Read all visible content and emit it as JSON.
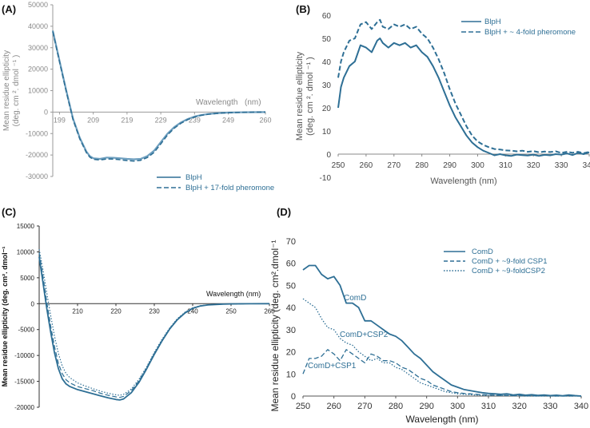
{
  "colors": {
    "main": "#2e6f95",
    "a_line": "#6e9fbf",
    "grey": "#8a8a8a"
  },
  "chart_data": [
    {
      "id": "A",
      "panel_label": "(A)",
      "type": "line",
      "xlabel": "Wavelength",
      "xlabel_unit": "(nm)",
      "ylabel_line1": "Mean residue ellipticity",
      "ylabel_line2": "(deg. cm ². dmol ⁻¹ )",
      "xlim": [
        197,
        260
      ],
      "ylim": [
        -30000,
        50000
      ],
      "xticks": [
        "199",
        "209",
        "219",
        "229",
        "239",
        "249",
        "260"
      ],
      "xtick_values": [
        199,
        209,
        219,
        229,
        239,
        249,
        260
      ],
      "yticks": [
        "50000",
        "40000",
        "30000",
        "20000",
        "10000",
        "0",
        "-10000",
        "-20000",
        "-30000"
      ],
      "ytick_values": [
        50000,
        40000,
        30000,
        20000,
        10000,
        0,
        -10000,
        -20000,
        -30000
      ],
      "legend": [
        "BlpH",
        "BlpH + 17-fold pheromone"
      ],
      "series": [
        {
          "name": "BlpH",
          "style": "solid",
          "x": [
            197,
            199,
            201,
            203,
            205,
            207,
            208,
            209,
            211,
            213,
            215,
            217,
            219,
            221,
            223,
            225,
            227,
            229,
            231,
            233,
            235,
            237,
            239,
            241,
            243,
            245,
            247,
            249,
            252,
            256,
            260
          ],
          "y": [
            38000,
            24000,
            10000,
            -3000,
            -12000,
            -18500,
            -20500,
            -21500,
            -21800,
            -21200,
            -21300,
            -21500,
            -21800,
            -22000,
            -21800,
            -20500,
            -18000,
            -14000,
            -10000,
            -7000,
            -4800,
            -3200,
            -2100,
            -1400,
            -900,
            -600,
            -400,
            -250,
            -120,
            -40,
            0
          ]
        },
        {
          "name": "BlpH + 17-fold pheromone",
          "style": "dashed",
          "x": [
            197,
            199,
            201,
            203,
            205,
            207,
            208,
            209,
            211,
            213,
            215,
            217,
            219,
            221,
            223,
            225,
            227,
            229,
            231,
            233,
            235,
            237,
            239,
            241,
            243,
            245,
            247,
            249,
            252,
            256,
            260
          ],
          "y": [
            37500,
            23500,
            9500,
            -3500,
            -12500,
            -19000,
            -21000,
            -22000,
            -22300,
            -21800,
            -21900,
            -22200,
            -22600,
            -22800,
            -22500,
            -21200,
            -18800,
            -14800,
            -10600,
            -7500,
            -5200,
            -3500,
            -2300,
            -1500,
            -1000,
            -700,
            -450,
            -300,
            -150,
            -50,
            0
          ]
        }
      ]
    },
    {
      "id": "B",
      "panel_label": "(B)",
      "type": "line",
      "xlabel": "Wavelength (nm)",
      "ylabel_line1": "Mean residue ellipticity",
      "ylabel_line2": "(deg. cm ². dmol ⁻¹ )",
      "xlim": [
        250,
        340
      ],
      "ylim": [
        -10,
        60
      ],
      "xticks": [
        "250",
        "260",
        "270",
        "280",
        "290",
        "300",
        "310",
        "320",
        "330",
        "340"
      ],
      "xtick_values": [
        250,
        260,
        270,
        280,
        290,
        300,
        310,
        320,
        330,
        340
      ],
      "yticks": [
        "60",
        "50",
        "40",
        "30",
        "20",
        "10",
        "0",
        "-10"
      ],
      "ytick_values": [
        60,
        50,
        40,
        30,
        20,
        10,
        0,
        -10
      ],
      "legend": [
        "BlpH",
        "BlpH + ~ 4-fold pheromone"
      ],
      "series": [
        {
          "name": "BlpH",
          "style": "solid",
          "x": [
            250,
            251,
            252,
            254,
            256,
            258,
            260,
            262,
            264,
            265,
            266,
            268,
            270,
            272,
            274,
            276,
            278,
            280,
            282,
            284,
            286,
            288,
            290,
            292,
            294,
            296,
            298,
            300,
            302,
            304,
            306,
            308,
            310,
            312,
            314,
            316,
            318,
            320,
            322,
            324,
            326,
            328,
            330,
            332,
            334,
            336,
            338,
            340
          ],
          "y": [
            20,
            29,
            33,
            38,
            40,
            47,
            46,
            44,
            49,
            50,
            48,
            46,
            48,
            47,
            48,
            46,
            47,
            44,
            42,
            38,
            33,
            27,
            21,
            16,
            12,
            8,
            5,
            3,
            1.5,
            0.5,
            -0.5,
            0,
            -0.5,
            -0.8,
            -0.2,
            -0.4,
            -0.6,
            -0.2,
            -0.8,
            -0.3,
            -0.5,
            0,
            -0.2,
            0.3,
            -0.4,
            0.5,
            0,
            0.8
          ]
        },
        {
          "name": "BlpH + ~ 4-fold pheromone",
          "style": "dashed",
          "x": [
            250,
            251,
            252,
            254,
            256,
            258,
            260,
            262,
            264,
            265,
            266,
            268,
            270,
            272,
            274,
            276,
            278,
            280,
            282,
            284,
            286,
            288,
            290,
            292,
            294,
            296,
            298,
            300,
            302,
            304,
            306,
            308,
            310,
            312,
            314,
            316,
            318,
            320,
            322,
            324,
            326,
            328,
            330,
            332,
            334,
            336,
            338,
            340
          ],
          "y": [
            33,
            40,
            44,
            49,
            50,
            56,
            57,
            54,
            57,
            58,
            55,
            54,
            56,
            55,
            56,
            54,
            55,
            52,
            50,
            46,
            41,
            35,
            28,
            22,
            17,
            12,
            8,
            5.5,
            4,
            3,
            2.2,
            2,
            1.6,
            1.5,
            1.2,
            1.5,
            1,
            1.3,
            0.8,
            1.1,
            0.9,
            1.2,
            0.5,
            1,
            0.6,
            1,
            0.4,
            1
          ]
        }
      ]
    },
    {
      "id": "C",
      "panel_label": "(C)",
      "type": "line",
      "xlabel": "Wavelength (nm)",
      "ylabel": "Mean residue ellipticity (deg. cm². dmol⁻¹",
      "xlim": [
        200,
        260
      ],
      "ylim": [
        -20000,
        15000
      ],
      "xticks": [
        "210",
        "220",
        "230",
        "240",
        "250",
        "260"
      ],
      "xtick_values": [
        210,
        220,
        230,
        240,
        250,
        260
      ],
      "yticks": [
        "15000",
        "10000",
        "5000",
        "0",
        "-5000",
        "-10000",
        "-15000",
        "-20000"
      ],
      "ytick_values": [
        15000,
        10000,
        5000,
        0,
        -5000,
        -10000,
        -15000,
        -20000
      ],
      "series": [
        {
          "name": "solid",
          "style": "solid",
          "x": [
            200,
            201,
            202,
            203,
            204,
            205,
            206,
            207,
            208,
            210,
            212,
            214,
            216,
            218,
            220,
            221,
            222,
            224,
            226,
            228,
            230,
            232,
            234,
            236,
            238,
            240,
            242,
            244,
            246,
            248,
            250,
            255,
            260
          ],
          "y": [
            9000,
            4000,
            -1000,
            -5500,
            -9500,
            -12500,
            -14500,
            -15500,
            -16000,
            -16600,
            -17000,
            -17400,
            -17800,
            -18200,
            -18500,
            -18600,
            -18400,
            -17200,
            -15200,
            -12600,
            -9800,
            -7200,
            -4900,
            -3100,
            -1800,
            -900,
            -450,
            -250,
            -150,
            -90,
            -50,
            -15,
            0
          ]
        },
        {
          "name": "dashed",
          "style": "dashed",
          "x": [
            200,
            201,
            202,
            203,
            204,
            205,
            206,
            207,
            208,
            210,
            212,
            214,
            216,
            218,
            220,
            221,
            222,
            224,
            226,
            228,
            230,
            232,
            234,
            236,
            238,
            240,
            242,
            244,
            246,
            248,
            250,
            255,
            260
          ],
          "y": [
            9800,
            5200,
            200,
            -4300,
            -8300,
            -11500,
            -13500,
            -14700,
            -15300,
            -16000,
            -16400,
            -16800,
            -17300,
            -17700,
            -18000,
            -18100,
            -17900,
            -16800,
            -14900,
            -12400,
            -9600,
            -7100,
            -4800,
            -3000,
            -1700,
            -850,
            -420,
            -230,
            -140,
            -85,
            -45,
            -12,
            0
          ]
        },
        {
          "name": "dotted",
          "style": "dotted",
          "x": [
            200,
            201,
            202,
            203,
            204,
            205,
            206,
            207,
            208,
            210,
            212,
            214,
            216,
            218,
            220,
            221,
            222,
            224,
            226,
            228,
            230,
            232,
            234,
            236,
            238,
            240,
            242,
            244,
            246,
            248,
            250,
            255,
            260
          ],
          "y": [
            10500,
            6500,
            2000,
            -2300,
            -6300,
            -9600,
            -12000,
            -13500,
            -14300,
            -15300,
            -15900,
            -16400,
            -16900,
            -17300,
            -17600,
            -17700,
            -17500,
            -16500,
            -14600,
            -12200,
            -9400,
            -6900,
            -4700,
            -2900,
            -1650,
            -800,
            -400,
            -220,
            -130,
            -80,
            -40,
            -10,
            0
          ]
        }
      ]
    },
    {
      "id": "D",
      "panel_label": "(D)",
      "type": "line",
      "xlabel": "Wavelength (nm)",
      "ylabel": "Mean residue ellipticity (deg. cm².dmol⁻¹",
      "xlim": [
        250,
        340
      ],
      "ylim": [
        0,
        70
      ],
      "xticks": [
        "250",
        "260",
        "270",
        "280",
        "290",
        "300",
        "310",
        "320",
        "330",
        "340"
      ],
      "xtick_values": [
        250,
        260,
        270,
        280,
        290,
        300,
        310,
        320,
        330,
        340
      ],
      "yticks": [
        "70",
        "60",
        "50",
        "40",
        "30",
        "20",
        "10",
        "0"
      ],
      "ytick_values": [
        70,
        60,
        50,
        40,
        30,
        20,
        10,
        0
      ],
      "legend": [
        "ComD",
        "ComD + ~9-fold CSP1",
        "ComD + ~9-foldCSP2"
      ],
      "annotations": [
        "ComD",
        "ComD+CSP2",
        "ComD+CSP1"
      ],
      "series": [
        {
          "name": "ComD",
          "style": "solid",
          "x": [
            250,
            252,
            254,
            256,
            258,
            260,
            262,
            264,
            266,
            268,
            270,
            272,
            274,
            276,
            278,
            280,
            282,
            284,
            286,
            288,
            290,
            292,
            294,
            296,
            298,
            300,
            302,
            304,
            306,
            308,
            310,
            312,
            314,
            316,
            318,
            320,
            322,
            324,
            326,
            328,
            330,
            332,
            334,
            336,
            338,
            340
          ],
          "y": [
            57,
            59,
            59,
            55,
            53,
            54,
            50,
            42,
            42,
            40,
            34,
            34,
            32,
            30,
            28,
            27,
            25,
            22,
            19,
            17,
            14,
            11,
            9,
            7,
            5,
            4,
            3,
            2.5,
            2,
            1.5,
            1.2,
            1,
            0.8,
            1,
            0.5,
            0.8,
            0.4,
            0.6,
            0.3,
            0.5,
            0.2,
            0.4,
            0.1,
            0.5,
            0.2,
            0
          ]
        },
        {
          "name": "ComD + ~9-fold CSP1",
          "style": "dashed",
          "x": [
            250,
            252,
            254,
            256,
            258,
            260,
            262,
            264,
            266,
            268,
            270,
            272,
            274,
            276,
            278,
            280,
            282,
            284,
            286,
            288,
            290,
            292,
            294,
            296,
            298,
            300,
            302,
            304,
            306,
            308,
            310,
            312,
            314,
            316,
            318,
            320,
            322,
            324,
            326,
            328,
            330,
            332,
            334,
            336,
            338,
            340
          ],
          "y": [
            10,
            17,
            17,
            18,
            21,
            19,
            16,
            21,
            19,
            17,
            15,
            19,
            18,
            16,
            16,
            15,
            13,
            12,
            10,
            8,
            7,
            5,
            4,
            3,
            2,
            1.5,
            1.2,
            1,
            0.8,
            0.6,
            0.5,
            0.4,
            0.3,
            0.3,
            0.2,
            0.2,
            0.1,
            0.1,
            0,
            0.1,
            0,
            0,
            0,
            0,
            0,
            0
          ]
        },
        {
          "name": "ComD + ~9-foldCSP2",
          "style": "dotted",
          "x": [
            250,
            252,
            254,
            256,
            258,
            260,
            262,
            264,
            266,
            268,
            270,
            272,
            274,
            276,
            278,
            280,
            282,
            284,
            286,
            288,
            290,
            292,
            294,
            296,
            298,
            300,
            302,
            304,
            306,
            308,
            310,
            312,
            314,
            316,
            318,
            320,
            322,
            324,
            326,
            328,
            330,
            332,
            334,
            336,
            338,
            340
          ],
          "y": [
            44,
            42,
            40,
            35,
            31,
            30,
            26,
            24,
            23,
            20,
            18,
            16,
            17,
            15,
            15,
            13,
            12,
            10,
            8,
            6,
            5,
            4,
            3,
            2,
            1.5,
            1,
            0.8,
            0.6,
            0.5,
            0.4,
            0.3,
            0.3,
            0.2,
            0.2,
            0.1,
            0.1,
            0,
            0,
            0,
            0,
            0,
            0,
            0,
            0,
            0,
            0
          ]
        }
      ]
    }
  ]
}
